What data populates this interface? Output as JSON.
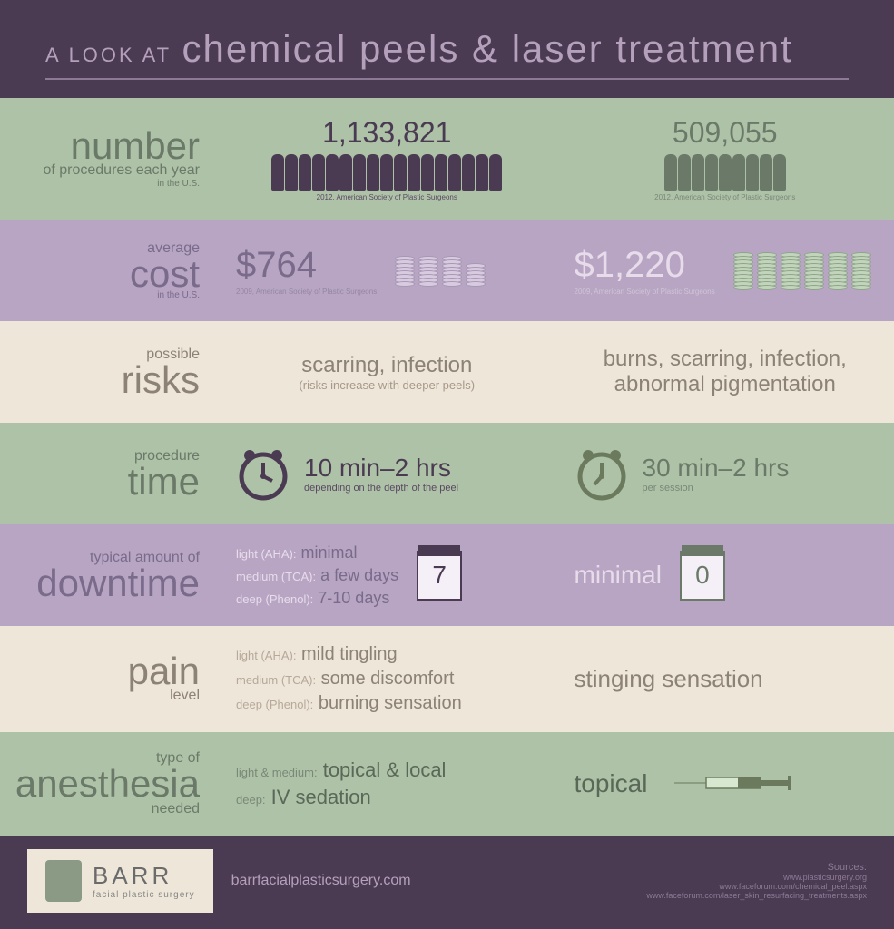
{
  "header": {
    "prefix": "A LOOK AT",
    "title": "chemical peels & laser treatment"
  },
  "rows": {
    "number": {
      "label_small": "number",
      "label_sub": "of procedures each year",
      "label_tiny": "in the U.S.",
      "col1_value": "1,133,821",
      "col1_people": 17,
      "col1_source": "2012, American Society of Plastic Surgeons",
      "col2_value": "509,055",
      "col2_people": 9,
      "col2_source": "2012, American Society of Plastic Surgeons"
    },
    "cost": {
      "label_small": "average",
      "label_large": "cost",
      "label_tiny": "in the U.S.",
      "col1_value": "$764",
      "col1_source": "2009, American Society of Plastic Surgeons",
      "col1_stacks": [
        8,
        8,
        8,
        6
      ],
      "col2_value": "$1,220",
      "col2_source": "2009, American Society of Plastic Surgeons",
      "col2_stacks": [
        10,
        10,
        10,
        10,
        10,
        10
      ]
    },
    "risks": {
      "label_small": "possible",
      "label_large": "risks",
      "col1_main": "scarring, infection",
      "col1_sub": "(risks increase with deeper peels)",
      "col2_main": "burns, scarring, infection, abnormal pigmentation"
    },
    "time": {
      "label_small": "procedure",
      "label_large": "time",
      "col1_main": "10 min–2 hrs",
      "col1_sub": "depending on the depth of the peel",
      "col2_main": "30 min–2 hrs",
      "col2_sub": "per session"
    },
    "downtime": {
      "label_small": "typical amount of",
      "label_large": "downtime",
      "col1_lines": [
        {
          "label": "light (AHA):",
          "value": "minimal"
        },
        {
          "label": "medium (TCA):",
          "value": "a few days"
        },
        {
          "label": "deep (Phenol):",
          "value": "7-10 days"
        }
      ],
      "col1_cal": "7",
      "col2_value": "minimal",
      "col2_cal": "0"
    },
    "pain": {
      "label_large": "pain",
      "label_small": "level",
      "col1_lines": [
        {
          "label": "light (AHA):",
          "value": "mild tingling"
        },
        {
          "label": "medium (TCA):",
          "value": "some discomfort"
        },
        {
          "label": "deep (Phenol):",
          "value": "burning sensation"
        }
      ],
      "col2_value": "stinging sensation"
    },
    "anesthesia": {
      "label_small": "type of",
      "label_large": "anesthesia",
      "label_sub": "needed",
      "col1_lines": [
        {
          "label": "light & medium:",
          "value": "topical & local"
        },
        {
          "label": "deep:",
          "value": "IV sedation"
        }
      ],
      "col2_value": "topical"
    }
  },
  "footer": {
    "brand": "BARR",
    "tagline": "facial plastic surgery",
    "url": "barrfacialplasticsurgery.com",
    "sources_title": "Sources:",
    "sources": [
      "www.plasticsurgery.org",
      "www.faceforum.com/chemical_peel.aspx",
      "www.faceforum.com/laser_skin_resurfacing_treatments.aspx"
    ]
  },
  "colors": {
    "bg_dark": "#4a3a52",
    "green": "#aec2a8",
    "purple": "#b8a5c4",
    "cream": "#ede6d9",
    "purple_dark": "#4a3a52",
    "green_dark": "#6b7a68"
  }
}
